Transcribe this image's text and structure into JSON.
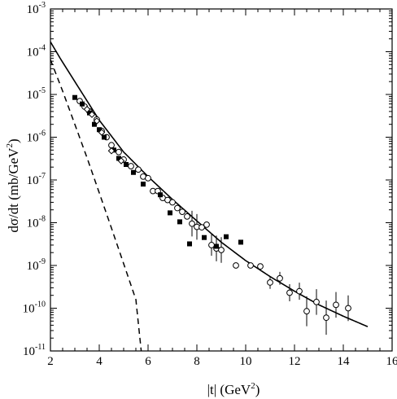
{
  "chart_data": {
    "type": "scatter",
    "xlabel": "|t|  (GeV",
    "xlabel_sup": "2",
    "xlabel_close": ")",
    "ylabel": "dσ/dt    (mb/GeV",
    "ylabel_sup": "2",
    "ylabel_close": ")",
    "y_scale": "log",
    "xlim": [
      2,
      16
    ],
    "ylim_exponent": [
      -11,
      -3
    ],
    "x_ticks": [
      2,
      4,
      6,
      8,
      10,
      12,
      14,
      16
    ],
    "y_ticks": [
      {
        "base": "10",
        "exp": "-11",
        "value": -11
      },
      {
        "base": "10",
        "exp": "-10",
        "value": -10
      },
      {
        "base": "10",
        "exp": "-9",
        "value": -9
      },
      {
        "base": "10",
        "exp": "-8",
        "value": -8
      },
      {
        "base": "10",
        "exp": "-7",
        "value": -7
      },
      {
        "base": "10",
        "exp": "-6",
        "value": -6
      },
      {
        "base": "10",
        "exp": "-5",
        "value": -5
      },
      {
        "base": "10",
        "exp": "-4",
        "value": -4
      },
      {
        "base": "10",
        "exp": "-3",
        "value": -3
      }
    ],
    "grid": false,
    "series": [
      {
        "style": "solid-curve",
        "points": [
          [
            2.0,
            0.00017
          ],
          [
            2.4,
            7e-05
          ],
          [
            3.0,
            2e-05
          ],
          [
            4.0,
            2.5e-06
          ],
          [
            5.0,
            4.5e-07
          ],
          [
            6.0,
            1.2e-07
          ],
          [
            7.0,
            3.5e-08
          ],
          [
            8.0,
            1.1e-08
          ],
          [
            9.0,
            3.5e-09
          ],
          [
            10.0,
            1.3e-09
          ],
          [
            11.0,
            5.5e-10
          ],
          [
            12.0,
            2.5e-10
          ],
          [
            13.0,
            1.2e-10
          ],
          [
            14.0,
            6.5e-11
          ],
          [
            15.0,
            3.7e-11
          ]
        ]
      },
      {
        "style": "dashed-curve",
        "points": [
          [
            2.0,
            6.5e-05
          ],
          [
            2.5,
            1.2e-05
          ],
          [
            3.0,
            2e-06
          ],
          [
            3.5,
            3.3e-07
          ],
          [
            4.0,
            5e-08
          ],
          [
            4.5,
            7.5e-09
          ],
          [
            5.0,
            1.1e-09
          ],
          [
            5.5,
            1.6e-10
          ],
          [
            5.72,
            1e-11
          ]
        ]
      },
      {
        "style": "open-circle",
        "points": [
          [
            3.2,
            7e-06,
            0
          ],
          [
            3.4,
            5.2e-06,
            0
          ],
          [
            3.6,
            4e-06,
            0
          ],
          [
            3.9,
            2.6e-06,
            0
          ],
          [
            4.1,
            1.4e-06,
            0
          ],
          [
            4.3,
            1e-06,
            0
          ],
          [
            4.5,
            6.5e-07,
            0
          ],
          [
            4.8,
            4.5e-07,
            0
          ],
          [
            5.0,
            3e-07,
            0
          ],
          [
            5.3,
            2.1e-07,
            0
          ],
          [
            5.6,
            1.75e-07,
            0
          ],
          [
            5.8,
            1.2e-07,
            0
          ],
          [
            6.0,
            1.1e-07,
            0
          ],
          [
            6.2,
            5.5e-08,
            0
          ],
          [
            6.4,
            5.5e-08,
            0
          ],
          [
            6.6,
            3.8e-08,
            0
          ],
          [
            6.8,
            3.4e-08,
            0
          ],
          [
            7.0,
            3e-08,
            0
          ],
          [
            7.2,
            2.2e-08,
            0
          ],
          [
            7.4,
            1.8e-08,
            0
          ],
          [
            7.6,
            1.4e-08,
            0
          ],
          [
            7.8,
            9.5e-09,
            0.3
          ],
          [
            8.0,
            8e-09,
            0.3
          ],
          [
            8.2,
            7.8e-09,
            0
          ],
          [
            8.4,
            9e-09,
            0
          ],
          [
            8.6,
            3e-09,
            0.25
          ],
          [
            8.8,
            2.5e-09,
            0.3
          ],
          [
            9.0,
            2.3e-09,
            0.3
          ],
          [
            9.6,
            1e-09,
            0
          ],
          [
            10.2,
            1e-09,
            0
          ],
          [
            10.6,
            9.5e-10,
            0
          ],
          [
            11.0,
            4e-10,
            0.15
          ],
          [
            11.4,
            5e-10,
            0.15
          ],
          [
            11.8,
            2.3e-10,
            0.2
          ],
          [
            12.2,
            2.5e-10,
            0.2
          ],
          [
            12.5,
            8.5e-11,
            0.35
          ],
          [
            12.9,
            1.4e-10,
            0.3
          ],
          [
            13.3,
            6e-11,
            0.4
          ],
          [
            13.7,
            1.2e-10,
            0.3
          ],
          [
            14.2,
            1e-10,
            0.3
          ]
        ]
      },
      {
        "style": "filled-square",
        "points": [
          [
            3.0,
            8.5e-06
          ],
          [
            3.3,
            6e-06
          ],
          [
            3.6,
            3.7e-06
          ],
          [
            3.8,
            2e-06
          ],
          [
            4.0,
            1.5e-06
          ],
          [
            4.2,
            1e-06
          ],
          [
            4.6,
            5e-07
          ],
          [
            4.8,
            3.2e-07
          ],
          [
            5.1,
            2.3e-07
          ],
          [
            5.4,
            1.5e-07
          ],
          [
            5.8,
            8e-08
          ],
          [
            6.5,
            4.5e-08
          ],
          [
            6.9,
            1.7e-08
          ],
          [
            7.3,
            1.05e-08
          ],
          [
            7.7,
            3.2e-09
          ],
          [
            8.3,
            4.5e-09
          ],
          [
            8.8,
            2.8e-09
          ],
          [
            9.2,
            4.7e-09
          ],
          [
            9.8,
            3.5e-09
          ]
        ]
      },
      {
        "style": "open-diamond",
        "points": [
          [
            3.5,
            4.5e-06
          ],
          [
            3.7,
            3.4e-06
          ],
          [
            3.9,
            2.4e-06
          ],
          [
            4.1,
            1.3e-06
          ],
          [
            4.5,
            4.8e-07
          ],
          [
            4.9,
            2.8e-07
          ]
        ]
      }
    ]
  }
}
